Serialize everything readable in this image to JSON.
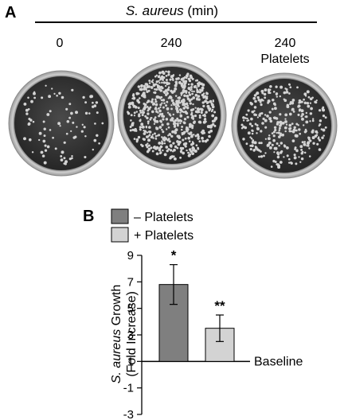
{
  "panel_a": {
    "letter": "A",
    "header_italic": "S. aureus",
    "header_rest": " (min)",
    "plates": [
      {
        "label_lines": [
          "0"
        ],
        "colony_density": "sparse"
      },
      {
        "label_lines": [
          "240"
        ],
        "colony_density": "dense"
      },
      {
        "label_lines": [
          "240",
          "Platelets"
        ],
        "colony_density": "medium"
      }
    ]
  },
  "panel_b": {
    "letter": "B",
    "legend_placement": "top-left",
    "colors": {
      "minus_platelets": "#7f7f7f",
      "plus_platelets": "#d3d3d3"
    }
  },
  "chart_data": {
    "type": "bar",
    "title": "",
    "ylabel_line1_italic": "S. aureus",
    "ylabel_line1_rest": " Growth",
    "ylabel_line2": "(Fold Increase)",
    "xlabel": "",
    "ylim": [
      -3,
      9
    ],
    "yticks": [
      -3,
      -1,
      1,
      3,
      5,
      7,
      9
    ],
    "ytick_labels": [
      "-3",
      "-1",
      "1",
      "3",
      "5",
      "7",
      "9"
    ],
    "baseline_value": 1,
    "baseline_label": "Baseline",
    "series": [
      {
        "name": "– Platelets",
        "values": [
          6.8
        ],
        "error": [
          1.5
        ],
        "annotation": "*",
        "color": "#7f7f7f"
      },
      {
        "name": "+ Platelets",
        "values": [
          3.5
        ],
        "error": [
          1.0
        ],
        "annotation": "**",
        "color": "#d3d3d3"
      }
    ]
  }
}
